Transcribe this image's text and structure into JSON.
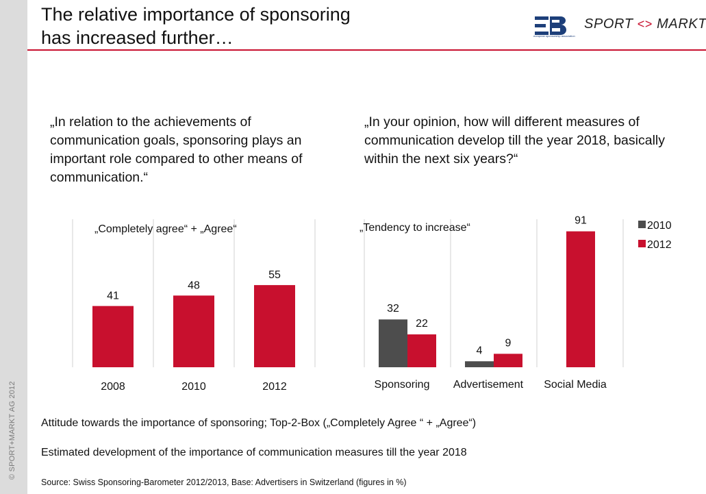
{
  "header": {
    "title_line1": "The relative importance of sponsoring",
    "title_line2": "has increased further…",
    "logo_es_tagline": "european sponsorship association",
    "logo_sm_left": "SPORT",
    "logo_sm_arrows": "<>",
    "logo_sm_right": "MARKT",
    "accent_color": "#c8102e",
    "logo_blue": "#1d3f7a"
  },
  "sidebar": {
    "copyright": "© SPORT+MARKT AG 2012"
  },
  "questions": {
    "left": "„In relation to the achievements of communication goals, sponsoring plays an important role compared to other means of communication.“",
    "right": "„In your opinion, how will different measures of communication develop till the year 2018, basically within the next six years?“"
  },
  "chart_data": [
    {
      "type": "bar",
      "subtitle": "„Completely agree“ + „Agree“",
      "categories": [
        "2008",
        "2010",
        "2012"
      ],
      "values": [
        41,
        48,
        55
      ],
      "ylim": [
        0,
        100
      ],
      "grid": false,
      "color": "#c8102e"
    },
    {
      "type": "bar",
      "subtitle": "„Tendency to increase“",
      "categories": [
        "Sponsoring",
        "Advertisement",
        "Social Media"
      ],
      "series": [
        {
          "name": "2010",
          "values": [
            32,
            4,
            null
          ],
          "color": "#4d4d4d"
        },
        {
          "name": "2012",
          "values": [
            22,
            9,
            91
          ],
          "color": "#c8102e"
        }
      ],
      "ylim": [
        0,
        100
      ],
      "grid": false,
      "legend": "top-right"
    }
  ],
  "notes": {
    "left": "Attitude towards the importance of sponsoring; Top-2-Box („Completely Agree “ + „Agree“)",
    "right": "Estimated development of the importance of communication measures till the year 2018",
    "source": "Source: Swiss Sponsoring-Barometer 2012/2013,  Base: Advertisers in Switzerland (figures in %)"
  }
}
